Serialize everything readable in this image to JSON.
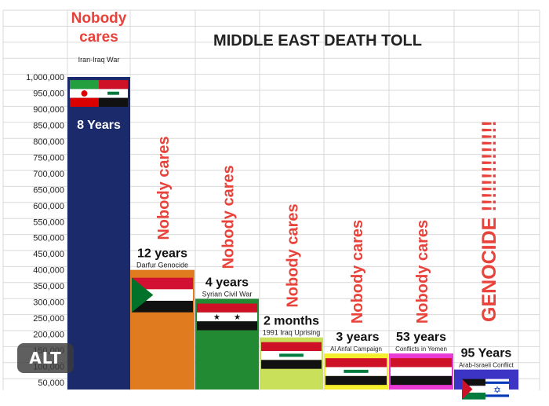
{
  "chart_data": {
    "type": "bar",
    "title": "MIDDLE EAST DEATH TOLL",
    "xlabel": "",
    "ylabel": "",
    "ylim": [
      50000,
      1000000
    ],
    "y_ticks": [
      "1,000,000",
      "950,000",
      "900,000",
      "850,000",
      "800,000",
      "750,000",
      "700,000",
      "650,000",
      "600,000",
      "550,000",
      "500,000",
      "450,000",
      "400,000",
      "350,000",
      "300,000",
      "250,000",
      "200,000",
      "150,000",
      "100,000",
      "50,000"
    ],
    "y_tick_values": [
      1000000,
      950000,
      900000,
      850000,
      800000,
      750000,
      700000,
      650000,
      600000,
      550000,
      500000,
      450000,
      400000,
      350000,
      300000,
      250000,
      200000,
      150000,
      100000,
      50000
    ],
    "grid": true,
    "categories": [
      "Iran-Iraq War",
      "Darfur Genocide",
      "Syrian Civil War",
      "1991 Iraq Uprising",
      "Al Anfal Campaign",
      "Conflicts in Yemen",
      "Arab-Israeli Conflict"
    ],
    "durations": [
      "8 Years",
      "12 years",
      "4 years",
      "2 months",
      "3 years",
      "53 years",
      "95 Years"
    ],
    "annotations": [
      "Nobody cares",
      "Nobody cares",
      "Nobody cares",
      "Nobody cares",
      "Nobody cares",
      "Nobody cares",
      "GENOCIDE !!!!!!!!!!!!!!"
    ],
    "values": [
      1000000,
      400000,
      310000,
      190000,
      140000,
      140000,
      90000
    ],
    "bar_colors": [
      "#1b2a6b",
      "#e07b1f",
      "#238a34",
      "#c9e05a",
      "#f4ee2d",
      "#e93ad6",
      "#3b34c4"
    ],
    "flags": [
      "iran-iraq",
      "sudan",
      "syria",
      "iraq",
      "iraq",
      "yemen",
      "palestine-israel"
    ]
  },
  "badge": {
    "label": "ALT"
  }
}
